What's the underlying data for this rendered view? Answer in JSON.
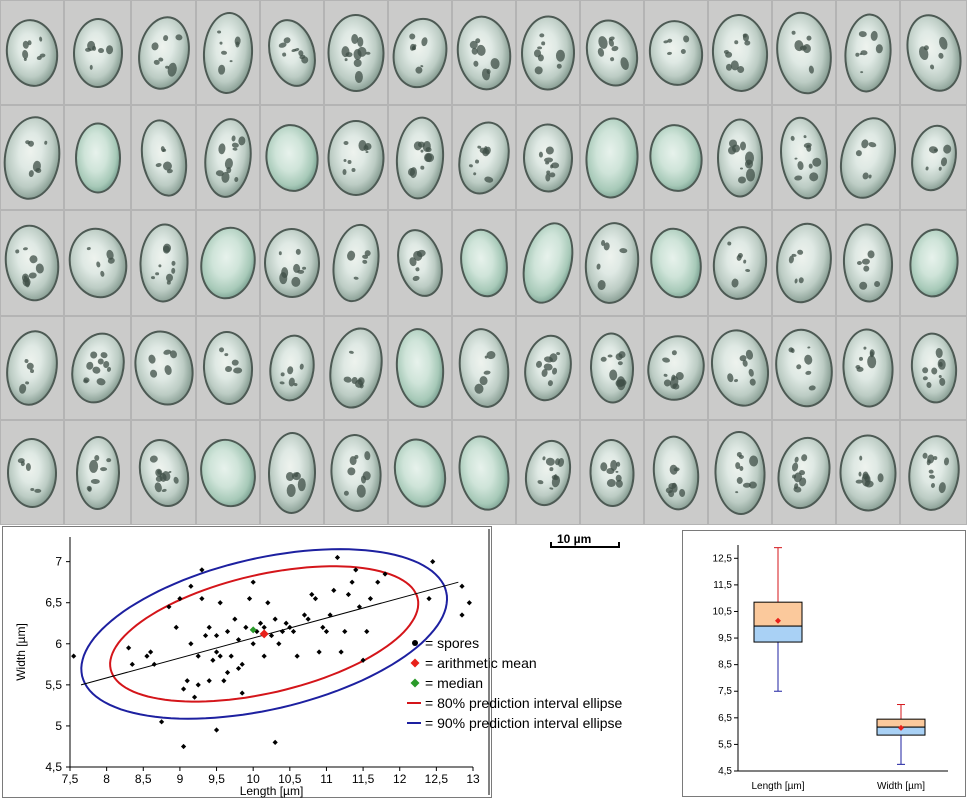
{
  "scale_bar": {
    "label": "10 µm"
  },
  "mosaic": {
    "rows": 5,
    "cols": 15
  },
  "chart_data": [
    {
      "type": "scatter",
      "xlabel": "Length [µm]",
      "ylabel": "Width [µm]",
      "xlim": [
        7.5,
        13
      ],
      "ylim": [
        4.5,
        7.3
      ],
      "xticks": [
        "7,5",
        "8",
        "8,5",
        "9",
        "9,5",
        "10",
        "10,5",
        "11",
        "11,5",
        "12",
        "12,5",
        "13"
      ],
      "yticks": [
        "4,5",
        "5",
        "5,5",
        "6",
        "6,5",
        "7"
      ],
      "grid": false,
      "legend_position": "lower-right",
      "legend": [
        {
          "marker": "●",
          "color": "#000000",
          "label": "= spores"
        },
        {
          "marker": "◆",
          "color": "#e8201a",
          "label": "= arithmetic mean"
        },
        {
          "marker": "◆",
          "color": "#2a9a2a",
          "label": "= median"
        },
        {
          "marker": "—",
          "color": "#d4151a",
          "label": "= 80% prediction interval ellipse"
        },
        {
          "marker": "—",
          "color": "#1d20a0",
          "label": "= 90% prediction interval ellipse"
        }
      ],
      "points": [
        [
          7.55,
          5.85
        ],
        [
          8.3,
          5.95
        ],
        [
          8.35,
          5.75
        ],
        [
          8.55,
          5.85
        ],
        [
          8.6,
          5.9
        ],
        [
          8.65,
          5.75
        ],
        [
          8.75,
          5.05
        ],
        [
          8.85,
          6.45
        ],
        [
          8.95,
          6.2
        ],
        [
          9.0,
          6.55
        ],
        [
          9.05,
          5.45
        ],
        [
          9.05,
          4.75
        ],
        [
          9.1,
          5.55
        ],
        [
          9.15,
          6.0
        ],
        [
          9.15,
          6.7
        ],
        [
          9.2,
          5.35
        ],
        [
          9.25,
          5.5
        ],
        [
          9.25,
          5.85
        ],
        [
          9.3,
          6.55
        ],
        [
          9.3,
          6.9
        ],
        [
          9.35,
          6.1
        ],
        [
          9.4,
          5.55
        ],
        [
          9.4,
          6.2
        ],
        [
          9.45,
          5.8
        ],
        [
          9.5,
          6.1
        ],
        [
          9.5,
          5.9
        ],
        [
          9.5,
          4.95
        ],
        [
          9.55,
          5.85
        ],
        [
          9.55,
          6.5
        ],
        [
          9.6,
          5.55
        ],
        [
          9.65,
          5.65
        ],
        [
          9.65,
          6.15
        ],
        [
          9.7,
          5.85
        ],
        [
          9.75,
          6.3
        ],
        [
          9.8,
          5.7
        ],
        [
          9.8,
          6.05
        ],
        [
          9.85,
          5.4
        ],
        [
          9.85,
          5.75
        ],
        [
          9.9,
          6.2
        ],
        [
          9.95,
          6.55
        ],
        [
          10.0,
          6.75
        ],
        [
          10.0,
          6.0
        ],
        [
          10.05,
          6.15
        ],
        [
          10.1,
          6.25
        ],
        [
          10.15,
          5.85
        ],
        [
          10.15,
          6.2
        ],
        [
          10.2,
          6.5
        ],
        [
          10.25,
          6.1
        ],
        [
          10.3,
          4.8
        ],
        [
          10.3,
          6.3
        ],
        [
          10.35,
          6.0
        ],
        [
          10.4,
          6.15
        ],
        [
          10.45,
          6.25
        ],
        [
          10.5,
          6.2
        ],
        [
          10.55,
          6.15
        ],
        [
          10.6,
          5.85
        ],
        [
          10.7,
          6.35
        ],
        [
          10.75,
          6.3
        ],
        [
          10.8,
          6.6
        ],
        [
          10.85,
          6.55
        ],
        [
          10.9,
          5.9
        ],
        [
          10.95,
          6.2
        ],
        [
          11.0,
          6.15
        ],
        [
          11.05,
          6.35
        ],
        [
          11.1,
          6.65
        ],
        [
          11.15,
          7.05
        ],
        [
          11.2,
          5.9
        ],
        [
          11.25,
          6.15
        ],
        [
          11.3,
          6.6
        ],
        [
          11.35,
          6.75
        ],
        [
          11.4,
          6.9
        ],
        [
          11.45,
          6.45
        ],
        [
          11.5,
          5.8
        ],
        [
          11.55,
          6.15
        ],
        [
          11.6,
          6.55
        ],
        [
          11.7,
          6.75
        ],
        [
          11.8,
          6.85
        ],
        [
          12.4,
          6.55
        ],
        [
          12.45,
          7.0
        ],
        [
          12.85,
          6.7
        ],
        [
          12.85,
          6.35
        ],
        [
          12.95,
          6.5
        ]
      ],
      "mean": [
        10.15,
        6.12
      ],
      "median": [
        10.0,
        6.17
      ],
      "regression_line": [
        [
          7.65,
          5.5
        ],
        [
          12.8,
          6.75
        ]
      ],
      "ellipses": [
        {
          "name": "80% prediction interval ellipse",
          "color": "#d4151a",
          "center": [
            10.15,
            6.12
          ],
          "semi_major": 2.15,
          "semi_minor": 0.72,
          "angle_deg": 13
        },
        {
          "name": "90% prediction interval ellipse",
          "color": "#1d20a0",
          "center": [
            10.15,
            6.12
          ],
          "semi_major": 2.55,
          "semi_minor": 0.92,
          "angle_deg": 13
        }
      ]
    },
    {
      "type": "box",
      "categories": [
        "Length [µm]",
        "Width [µm]"
      ],
      "ylim": [
        4.5,
        13
      ],
      "yticks": [
        "4,5",
        "5,5",
        "6,5",
        "7,5",
        "8,5",
        "9,5",
        "10,5",
        "11,5",
        "12,5"
      ],
      "boxes": [
        {
          "name": "Length [µm]",
          "min": 7.5,
          "q1": 9.35,
          "median": 9.95,
          "q3": 10.85,
          "max": 12.9,
          "mean": 10.15
        },
        {
          "name": "Width [µm]",
          "min": 4.75,
          "q1": 5.85,
          "median": 6.15,
          "q3": 6.45,
          "max": 7.0,
          "mean": 6.12
        }
      ],
      "colors": {
        "upper_box": "#fbc99c",
        "lower_box": "#a9d1f5",
        "upper_whisker": "#d4151a",
        "lower_whisker": "#1d20a0",
        "mean": "#e8201a"
      }
    }
  ]
}
